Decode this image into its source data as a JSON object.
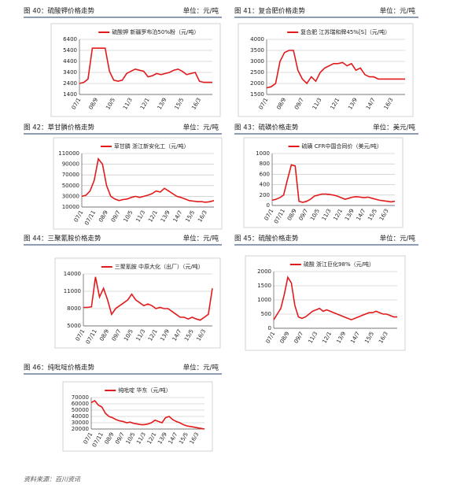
{
  "chart_data": [
    {
      "type": "line",
      "title": "图 40：硫酸钾价格走势",
      "unit": "单位：元/吨",
      "series": [
        {
          "name": "硫酸钾 新疆罗布泊50%粉（元/吨）",
          "color": "#e31a1c",
          "values": [
            2400,
            2500,
            2800,
            5600,
            5600,
            5600,
            5600,
            3500,
            2700,
            2600,
            2700,
            3300,
            3500,
            3700,
            3600,
            3500,
            3000,
            3100,
            3300,
            3200,
            3300,
            3400,
            3600,
            3700,
            3500,
            3200,
            3300,
            3400,
            2600,
            2500,
            2500,
            2500
          ]
        }
      ],
      "categories": [
        "07/1",
        null,
        null,
        null,
        "08/9",
        null,
        null,
        null,
        "10/5",
        null,
        null,
        null,
        "11/3",
        null,
        null,
        null,
        "12/1",
        null,
        null,
        null,
        "13/9",
        null,
        null,
        null,
        "15/5",
        null,
        null,
        null,
        "16/3",
        null,
        null,
        null
      ],
      "ylim": [
        1400,
        6400
      ],
      "yticks": [
        1400,
        2400,
        3400,
        4400,
        5400,
        6400
      ],
      "grid": true
    },
    {
      "type": "line",
      "title": "图 41：复合肥价格走势",
      "unit": "单位：元/吨",
      "series": [
        {
          "name": "复合肥 江苏瑞和牌45%[S]（元/吨）",
          "color": "#e31a1c",
          "values": [
            1800,
            1850,
            2000,
            3000,
            3400,
            3500,
            3500,
            2600,
            2200,
            2000,
            2300,
            2100,
            2500,
            2700,
            2800,
            2900,
            2900,
            2950,
            2800,
            2900,
            2600,
            2700,
            2400,
            2300,
            2300,
            2200,
            2200,
            2200,
            2200,
            2200,
            2200,
            2200
          ]
        }
      ],
      "categories": [
        "07/1",
        null,
        null,
        null,
        "08/9",
        null,
        null,
        null,
        "09/7",
        null,
        null,
        null,
        "11/3",
        null,
        null,
        null,
        "12/1",
        null,
        null,
        null,
        "13/9",
        null,
        null,
        null,
        "14/7",
        null,
        null,
        null,
        "16/3",
        null,
        null,
        null
      ],
      "ylim": [
        1500,
        4000
      ],
      "yticks": [
        1500,
        2000,
        2500,
        3000,
        3500,
        4000
      ],
      "grid": true
    },
    {
      "type": "line",
      "title": "图 42：草甘膦价格走势",
      "unit": "单位：元/吨",
      "series": [
        {
          "name": "草甘膦 浙江新安化工（元/吨）",
          "color": "#e31a1c",
          "values": [
            30000,
            32000,
            40000,
            60000,
            100000,
            90000,
            50000,
            30000,
            25000,
            22000,
            24000,
            25000,
            28000,
            30000,
            28000,
            30000,
            32000,
            35000,
            40000,
            38000,
            45000,
            40000,
            35000,
            30000,
            28000,
            25000,
            22000,
            21000,
            20000,
            20000,
            19000,
            20000,
            22000
          ]
        }
      ],
      "categories": [
        "07/1",
        null,
        null,
        "07/11",
        null,
        null,
        "08/9",
        null,
        null,
        "09/7",
        null,
        null,
        "10/5",
        null,
        null,
        "11/3",
        null,
        null,
        "12/1",
        null,
        null,
        "13/9",
        null,
        null,
        "14/7",
        null,
        null,
        "15/5",
        null,
        null,
        "16/3",
        null,
        null
      ],
      "ylim": [
        10000,
        110000
      ],
      "yticks": [
        10000,
        30000,
        50000,
        70000,
        90000,
        110000
      ],
      "grid": true
    },
    {
      "type": "line",
      "title": "图 43：硫磺价格走势",
      "unit": "单位：美元/吨",
      "series": [
        {
          "name": "硫磺 CFR中国合同价（美元/吨）",
          "color": "#e31a1c",
          "values": [
            100,
            120,
            150,
            200,
            500,
            780,
            760,
            80,
            60,
            80,
            120,
            180,
            200,
            220,
            220,
            210,
            200,
            180,
            150,
            120,
            140,
            160,
            170,
            160,
            150,
            160,
            140,
            120,
            100,
            90,
            80,
            70,
            80
          ]
        }
      ],
      "categories": [
        "07/1",
        null,
        null,
        "07/11",
        null,
        null,
        "08/9",
        null,
        null,
        "09/7",
        null,
        null,
        "10/5",
        null,
        null,
        "11/3",
        null,
        null,
        "12/1",
        null,
        null,
        "13/9",
        null,
        null,
        "14/7",
        null,
        null,
        "15/5",
        null,
        null,
        "16/3",
        null,
        null
      ],
      "ylim": [
        0,
        1000
      ],
      "yticks": [
        0,
        200,
        400,
        600,
        800,
        1000
      ],
      "grid": true
    },
    {
      "type": "line",
      "title": "图 44：三聚氰胺价格走势",
      "unit": "单位：元/吨",
      "series": [
        {
          "name": "三聚氰胺 中原大化（出厂）（元/吨）",
          "color": "#e31a1c",
          "values": [
            8200,
            8200,
            8300,
            13500,
            10000,
            11500,
            9500,
            7000,
            8000,
            8500,
            9000,
            9500,
            10500,
            9500,
            9000,
            8500,
            8800,
            8500,
            8000,
            8200,
            8000,
            8000,
            7500,
            7000,
            6500,
            6500,
            6200,
            6500,
            6200,
            6000,
            6500,
            7000,
            11500
          ]
        }
      ],
      "categories": [
        "07/1",
        null,
        null,
        "07/11",
        null,
        null,
        "08/9",
        null,
        null,
        "09/7",
        null,
        null,
        "10/5",
        null,
        null,
        "11/3",
        null,
        null,
        "12/1",
        null,
        null,
        "13/9",
        null,
        null,
        "14/7",
        null,
        null,
        "15/5",
        null,
        null,
        "16/3",
        null,
        null
      ],
      "ylim": [
        5000,
        14000
      ],
      "yticks": [
        5000,
        8000,
        11000,
        14000
      ],
      "grid": true
    },
    {
      "type": "line",
      "title": "图 45：硫酸价格走势",
      "unit": "单位：元/吨",
      "series": [
        {
          "name": "硫酸 浙江巨化98%（元/吨）",
          "color": "#e31a1c",
          "values": [
            300,
            500,
            700,
            1200,
            1800,
            1600,
            800,
            400,
            350,
            400,
            500,
            600,
            650,
            700,
            600,
            650,
            600,
            550,
            500,
            450,
            400,
            350,
            300,
            350,
            400,
            450,
            500,
            550,
            550,
            600,
            550,
            500,
            500,
            450,
            400,
            400
          ]
        }
      ],
      "categories": [
        "07/1",
        null,
        null,
        null,
        "08/9",
        null,
        null,
        null,
        "09/7",
        null,
        null,
        null,
        "11/3",
        null,
        null,
        null,
        "12/1",
        null,
        null,
        null,
        "13/9",
        null,
        null,
        null,
        "14/7",
        null,
        null,
        null,
        "15/5",
        null,
        null,
        null,
        "16/3",
        null,
        null,
        null
      ],
      "ylim": [
        0,
        2000
      ],
      "yticks": [
        0,
        500,
        1000,
        1500,
        2000
      ],
      "grid": true
    },
    {
      "type": "line",
      "title": "图 46：纯吡啶价格走势",
      "unit": "单位：元/吨",
      "series": [
        {
          "name": "纯吡啶 华东（元/吨）",
          "color": "#e31a1c",
          "values": [
            62000,
            65000,
            58000,
            55000,
            45000,
            40000,
            38000,
            35000,
            33000,
            32000,
            30000,
            31000,
            29000,
            28000,
            27000,
            27000,
            28000,
            30000,
            34000,
            32000,
            30000,
            38000,
            40000,
            35000,
            32000,
            30000,
            27000,
            25000,
            24000,
            23000,
            22000,
            21000,
            20000
          ]
        }
      ],
      "categories": [
        "07/1",
        null,
        null,
        "07/11",
        null,
        null,
        "08/9",
        null,
        null,
        "09/7",
        null,
        null,
        "10/5",
        null,
        null,
        "11/3",
        null,
        null,
        "12/1",
        null,
        null,
        "13/9",
        null,
        null,
        "14/7",
        null,
        null,
        "15/5",
        null,
        null,
        "16/3",
        null,
        null
      ],
      "ylim": [
        20000,
        70000
      ],
      "yticks": [
        20000,
        30000,
        40000,
        50000,
        60000,
        70000
      ],
      "grid": true
    }
  ],
  "source": "资料来源：百川资讯"
}
